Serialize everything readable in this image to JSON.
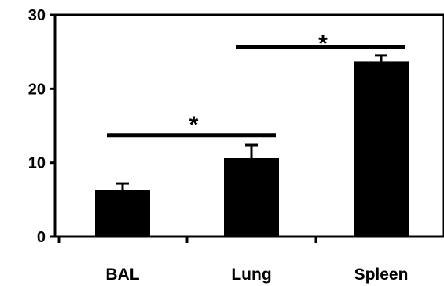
{
  "colors": {
    "bar": "#000000",
    "axis": "#000000",
    "background": "#ffffff"
  },
  "chart_data": {
    "type": "bar",
    "title": "",
    "xlabel": "",
    "ylabel": "",
    "ylim": [
      0,
      30
    ],
    "yticks": [
      0,
      10,
      20,
      30
    ],
    "yticklabels": [
      "0",
      "10",
      "20",
      "30"
    ],
    "categories": [
      "BAL",
      "Lung",
      "Spleen"
    ],
    "values": [
      6.3,
      10.6,
      23.7
    ],
    "errors": [
      0.9,
      1.8,
      0.8
    ],
    "grid": false,
    "annotations": [
      {
        "text": "*",
        "from": "BAL",
        "to": "Lung",
        "level": 13.7
      },
      {
        "text": "*",
        "from": "Lung",
        "to": "Spleen",
        "level": 25.7
      }
    ]
  }
}
